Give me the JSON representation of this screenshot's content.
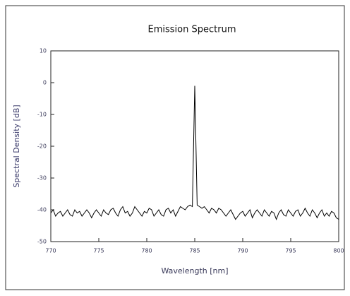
{
  "chart_data": {
    "type": "line",
    "title": "Emission Spectrum",
    "x_label": "Wavelength [nm]",
    "y_label": "Spectral Density [dB]",
    "color": "#000000",
    "x": [
      770,
      770.25,
      770.5,
      770.75,
      771,
      771.25,
      771.5,
      771.75,
      772,
      772.25,
      772.5,
      772.75,
      773,
      773.25,
      773.5,
      773.75,
      774,
      774.25,
      774.5,
      774.75,
      775,
      775.25,
      775.5,
      775.75,
      776,
      776.25,
      776.5,
      776.75,
      777,
      777.25,
      777.5,
      777.75,
      778,
      778.25,
      778.5,
      778.75,
      779,
      779.25,
      779.5,
      779.75,
      780,
      780.25,
      780.5,
      780.75,
      781,
      781.25,
      781.5,
      781.75,
      782,
      782.25,
      782.5,
      782.75,
      783,
      783.25,
      783.5,
      783.75,
      784,
      784.25,
      784.5,
      784.75,
      785,
      785.25,
      785.5,
      785.75,
      786,
      786.25,
      786.5,
      786.75,
      787,
      787.25,
      787.5,
      787.75,
      788,
      788.25,
      788.5,
      788.75,
      789,
      789.25,
      789.5,
      789.75,
      790,
      790.25,
      790.5,
      790.75,
      791,
      791.25,
      791.5,
      791.75,
      792,
      792.25,
      792.5,
      792.75,
      793,
      793.25,
      793.5,
      793.75,
      794,
      794.25,
      794.5,
      794.75,
      795,
      795.25,
      795.5,
      795.75,
      796,
      796.25,
      796.5,
      796.75,
      797,
      797.25,
      797.5,
      797.75,
      798,
      798.25,
      798.5,
      798.75,
      799,
      799.25,
      799.5,
      799.75,
      800
    ],
    "values": [
      -41,
      -40,
      -42,
      -41,
      -40.5,
      -42,
      -41,
      -40,
      -41.5,
      -42,
      -40,
      -41,
      -40.5,
      -42,
      -41,
      -40,
      -41,
      -42.5,
      -41,
      -40,
      -41,
      -42,
      -40,
      -41,
      -41.5,
      -40,
      -39.5,
      -41,
      -42,
      -40,
      -39,
      -41,
      -40.5,
      -42,
      -41,
      -39,
      -40,
      -41,
      -42,
      -40.5,
      -41,
      -39.5,
      -40,
      -42,
      -41,
      -40,
      -41.5,
      -42,
      -40,
      -39.5,
      -41,
      -40,
      -42,
      -40.5,
      -39,
      -39.5,
      -40,
      -39,
      -38.5,
      -39,
      -1,
      -38.5,
      -39,
      -39.5,
      -39,
      -40,
      -41,
      -39.5,
      -40,
      -41,
      -39.5,
      -40,
      -41,
      -42,
      -41,
      -40,
      -41.5,
      -43,
      -42,
      -41,
      -40.5,
      -42,
      -41,
      -40,
      -42.5,
      -41,
      -40,
      -41,
      -42,
      -40,
      -41,
      -42,
      -40.5,
      -41,
      -43,
      -41,
      -40,
      -41.5,
      -42,
      -40,
      -41,
      -42,
      -40.5,
      -40,
      -42,
      -41,
      -39.5,
      -41,
      -42,
      -40,
      -41,
      -42.5,
      -41,
      -40,
      -42,
      -41,
      -42,
      -40.5,
      -41,
      -42.5,
      -43
    ],
    "xlim": [
      770,
      800
    ],
    "xticks": [
      770,
      775,
      780,
      785,
      790,
      795,
      800
    ],
    "ylim": [
      -50,
      10
    ],
    "yticks": [
      -50,
      -40,
      -30,
      -20,
      -10,
      0,
      10
    ]
  }
}
